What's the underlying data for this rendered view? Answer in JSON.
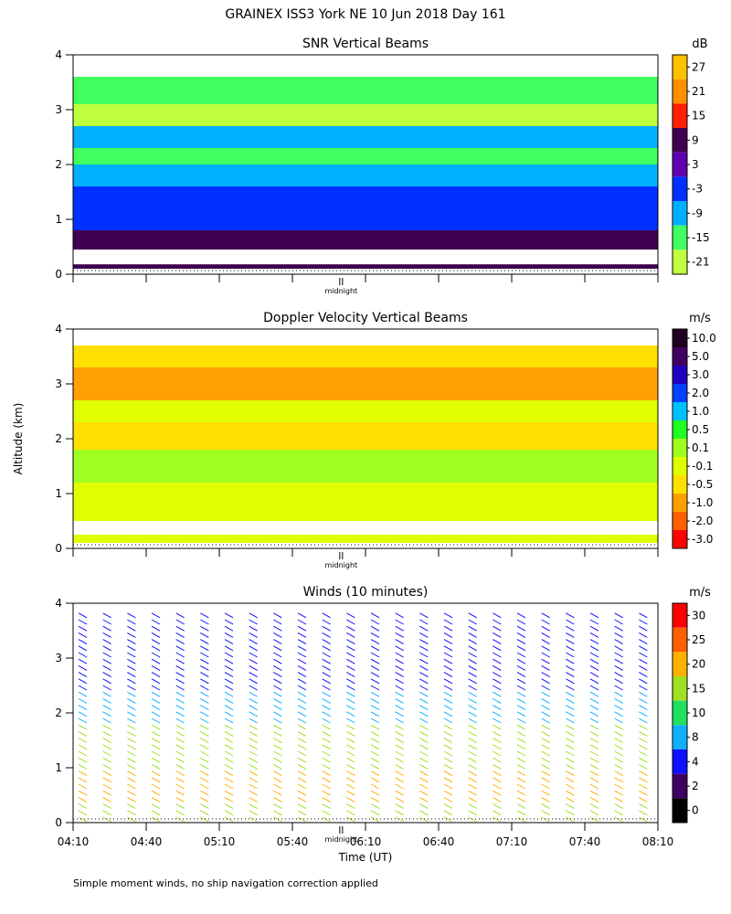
{
  "title": "GRAINEX ISS3 York NE  10 Jun 2018 Day 161",
  "y_axis_label": "Altitude (km)",
  "x_axis_label": "Time (UT)",
  "footnote": "Simple moment winds, no ship navigation correction applied",
  "midnight_label": "midnight",
  "chart_data": [
    {
      "type": "heatmap",
      "title": "SNR Vertical Beams",
      "colorbar_unit": "dB",
      "colorbar_ticks": [
        "27",
        "21",
        "15",
        "9",
        "3",
        "-3",
        "-9",
        "-15",
        "-21"
      ],
      "colorbar_colors": [
        "#ffc000",
        "#ff9000",
        "#ff2000",
        "#400050",
        "#6000b0",
        "#0030ff",
        "#00b0ff",
        "#40ff60",
        "#c0ff40"
      ],
      "yticks": [
        "0",
        "1",
        "2",
        "3",
        "4"
      ],
      "ylim": [
        0,
        4
      ],
      "bands": [
        {
          "y0": 0.1,
          "y1": 0.18,
          "color": "#400050"
        },
        {
          "y0": 0.45,
          "y1": 0.8,
          "color": "#400050"
        },
        {
          "y0": 0.8,
          "y1": 1.2,
          "color": "#0030ff"
        },
        {
          "y0": 1.2,
          "y1": 1.6,
          "color": "#0030ff"
        },
        {
          "y0": 1.6,
          "y1": 2.0,
          "color": "#00b0ff"
        },
        {
          "y0": 2.0,
          "y1": 2.3,
          "color": "#40ff60"
        },
        {
          "y0": 2.3,
          "y1": 2.7,
          "color": "#00b0ff"
        },
        {
          "y0": 2.7,
          "y1": 3.1,
          "color": "#c0ff40"
        },
        {
          "y0": 3.1,
          "y1": 3.6,
          "color": "#40ff60"
        }
      ]
    },
    {
      "type": "heatmap",
      "title": "Doppler Velocity Vertical Beams",
      "colorbar_unit": "m/s",
      "colorbar_ticks": [
        "10.0",
        "5.0",
        "3.0",
        "2.0",
        "1.0",
        "0.5",
        "0.1",
        "-0.1",
        "-0.5",
        "-1.0",
        "-2.0",
        "-3.0"
      ],
      "colorbar_colors": [
        "#200020",
        "#400060",
        "#2000c0",
        "#0040ff",
        "#00c0ff",
        "#20ff20",
        "#a0ff20",
        "#e0ff00",
        "#ffe000",
        "#ffa000",
        "#ff6000",
        "#ff0000"
      ],
      "yticks": [
        "0",
        "1",
        "2",
        "3",
        "4"
      ],
      "ylim": [
        0,
        4
      ],
      "bands": [
        {
          "y0": 0.1,
          "y1": 0.25,
          "color": "#e0ff00"
        },
        {
          "y0": 0.5,
          "y1": 1.2,
          "color": "#e0ff00"
        },
        {
          "y0": 1.2,
          "y1": 1.8,
          "color": "#a0ff20"
        },
        {
          "y0": 1.8,
          "y1": 2.3,
          "color": "#ffe000"
        },
        {
          "y0": 2.3,
          "y1": 2.7,
          "color": "#e0ff00"
        },
        {
          "y0": 2.7,
          "y1": 3.3,
          "color": "#ffa000"
        },
        {
          "y0": 3.3,
          "y1": 3.7,
          "color": "#ffe000"
        }
      ]
    },
    {
      "type": "wind_barbs",
      "title": "Winds (10 minutes)",
      "colorbar_unit": "m/s",
      "colorbar_ticks": [
        "30",
        "25",
        "20",
        "15",
        "10",
        "8",
        "4",
        "2",
        "0"
      ],
      "colorbar_colors": [
        "#ff0000",
        "#ff6000",
        "#ffb000",
        "#a0e020",
        "#20e060",
        "#10b0ff",
        "#1010ff",
        "#400060",
        "#000000"
      ],
      "yticks": [
        "0",
        "1",
        "2",
        "3",
        "4"
      ],
      "ylim": [
        0,
        4
      ],
      "xticks": [
        "04:10",
        "04:40",
        "05:10",
        "05:40",
        "06:10",
        "06:40",
        "07:10",
        "07:40",
        "08:10"
      ],
      "profile_times": [
        "04:10",
        "04:20",
        "04:30",
        "04:40",
        "04:50",
        "05:00",
        "05:10",
        "05:20",
        "05:30",
        "05:40",
        "05:50",
        "06:00",
        "06:10",
        "06:20",
        "06:30",
        "06:40",
        "06:50",
        "07:00",
        "07:10",
        "07:20",
        "07:30",
        "07:40",
        "07:50",
        "08:00"
      ]
    }
  ]
}
